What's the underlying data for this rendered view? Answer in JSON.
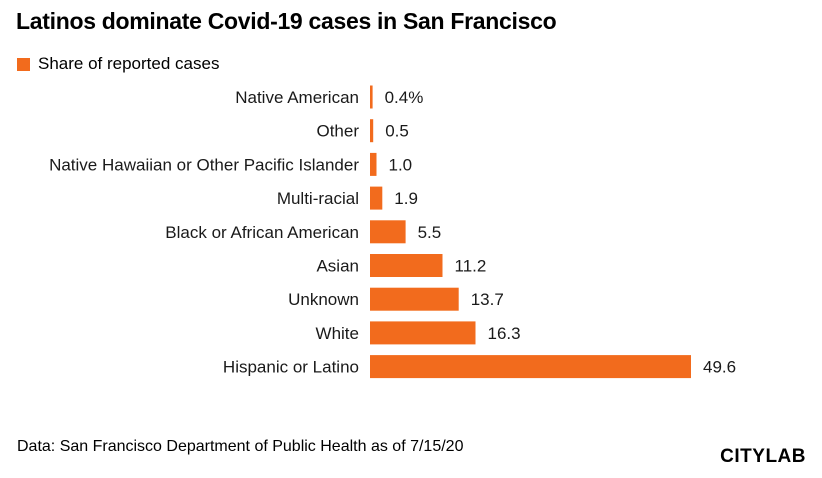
{
  "chart_data": {
    "type": "bar",
    "orientation": "horizontal",
    "title": "Latinos dominate Covid-19 cases in San Francisco",
    "legend": {
      "label": "Share of reported cases",
      "position": "top-left"
    },
    "categories": [
      "Native American",
      "Other",
      "Native Hawaiian or Other Pacific Islander",
      "Multi-racial",
      "Black or African American",
      "Asian",
      "Unknown",
      "White",
      "Hispanic or Latino"
    ],
    "values": [
      0.4,
      0.5,
      1.0,
      1.9,
      5.5,
      11.2,
      13.7,
      16.3,
      49.6
    ],
    "value_labels": [
      "0.4%",
      "0.5",
      "1.0",
      "1.9",
      "5.5",
      "11.2",
      "13.7",
      "16.3",
      "49.6"
    ],
    "xlim": [
      0,
      49.6
    ],
    "grid": false,
    "colors": {
      "bar": "#f26b1d"
    }
  },
  "source": "Data: San Francisco Department of Public Health as of 7/15/20",
  "brand": "CITYLAB"
}
